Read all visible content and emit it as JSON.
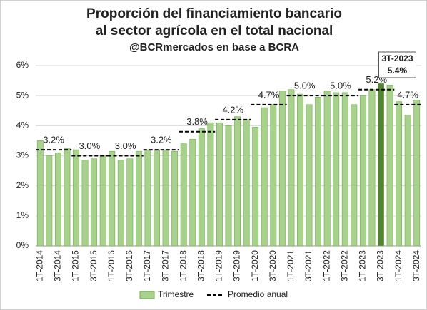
{
  "chart_data": {
    "type": "bar",
    "title": [
      "Proporción del financiamiento bancario",
      "al sector agrícola en el total nacional"
    ],
    "subtitle": "@BCRmercados en base a BCRA",
    "categories": [
      "1T-2014",
      null,
      "3T-2014",
      null,
      "1T-2015",
      null,
      "3T-2015",
      null,
      "1T-2016",
      null,
      "3T-2016",
      null,
      "1T-2017",
      null,
      "3T-2017",
      null,
      "1T-2018",
      null,
      "3T-2018",
      null,
      "1T-2019",
      null,
      "3T-2019",
      null,
      "1T-2020",
      null,
      "3T-2020",
      null,
      "1T-2021",
      null,
      "3T-2021",
      null,
      "1T-2022",
      null,
      "3T-2022",
      null,
      "1T-2023",
      null,
      "3T-2023",
      null,
      "1T-2024",
      null,
      "3T-2024"
    ],
    "series": [
      {
        "name": "Trimestre",
        "color": "#a9d18e",
        "values": [
          3.5,
          3.0,
          3.1,
          3.25,
          3.2,
          2.85,
          2.9,
          3.0,
          3.15,
          2.85,
          2.9,
          3.15,
          3.2,
          3.2,
          3.2,
          3.15,
          3.4,
          3.55,
          3.9,
          4.1,
          4.1,
          4.0,
          4.3,
          4.2,
          3.95,
          4.6,
          4.7,
          5.15,
          5.2,
          5.05,
          4.7,
          4.95,
          5.15,
          5.1,
          5.1,
          4.7,
          5.0,
          5.2,
          5.4,
          5.35,
          4.8,
          4.35,
          4.85
        ]
      }
    ],
    "averages": {
      "name": "Promedio anual",
      "values": [
        3.2,
        3.0,
        3.0,
        3.2,
        3.8,
        4.2,
        4.7,
        5.0,
        5.0,
        5.2,
        4.7
      ],
      "value_labels": [
        "3.2%",
        "3.0%",
        "3.0%",
        "3.2%",
        "3.8%",
        "4.2%",
        "4.7%",
        "5.0%",
        "5.0%",
        "5.2%",
        "4.7%"
      ]
    },
    "highlight": {
      "index": 38,
      "color": "#548235",
      "annotation": [
        "3T-2023",
        "5.4%"
      ]
    },
    "ylim": [
      0,
      6
    ],
    "yticks": [
      {
        "value": 0,
        "label": "0%"
      },
      {
        "value": 1,
        "label": "1%"
      },
      {
        "value": 2,
        "label": "2%"
      },
      {
        "value": 3,
        "label": "3%"
      },
      {
        "value": 4,
        "label": "4%"
      },
      {
        "value": 5,
        "label": "5%"
      },
      {
        "value": 6,
        "label": "6%"
      }
    ],
    "grid": true,
    "legend": "bottom"
  }
}
